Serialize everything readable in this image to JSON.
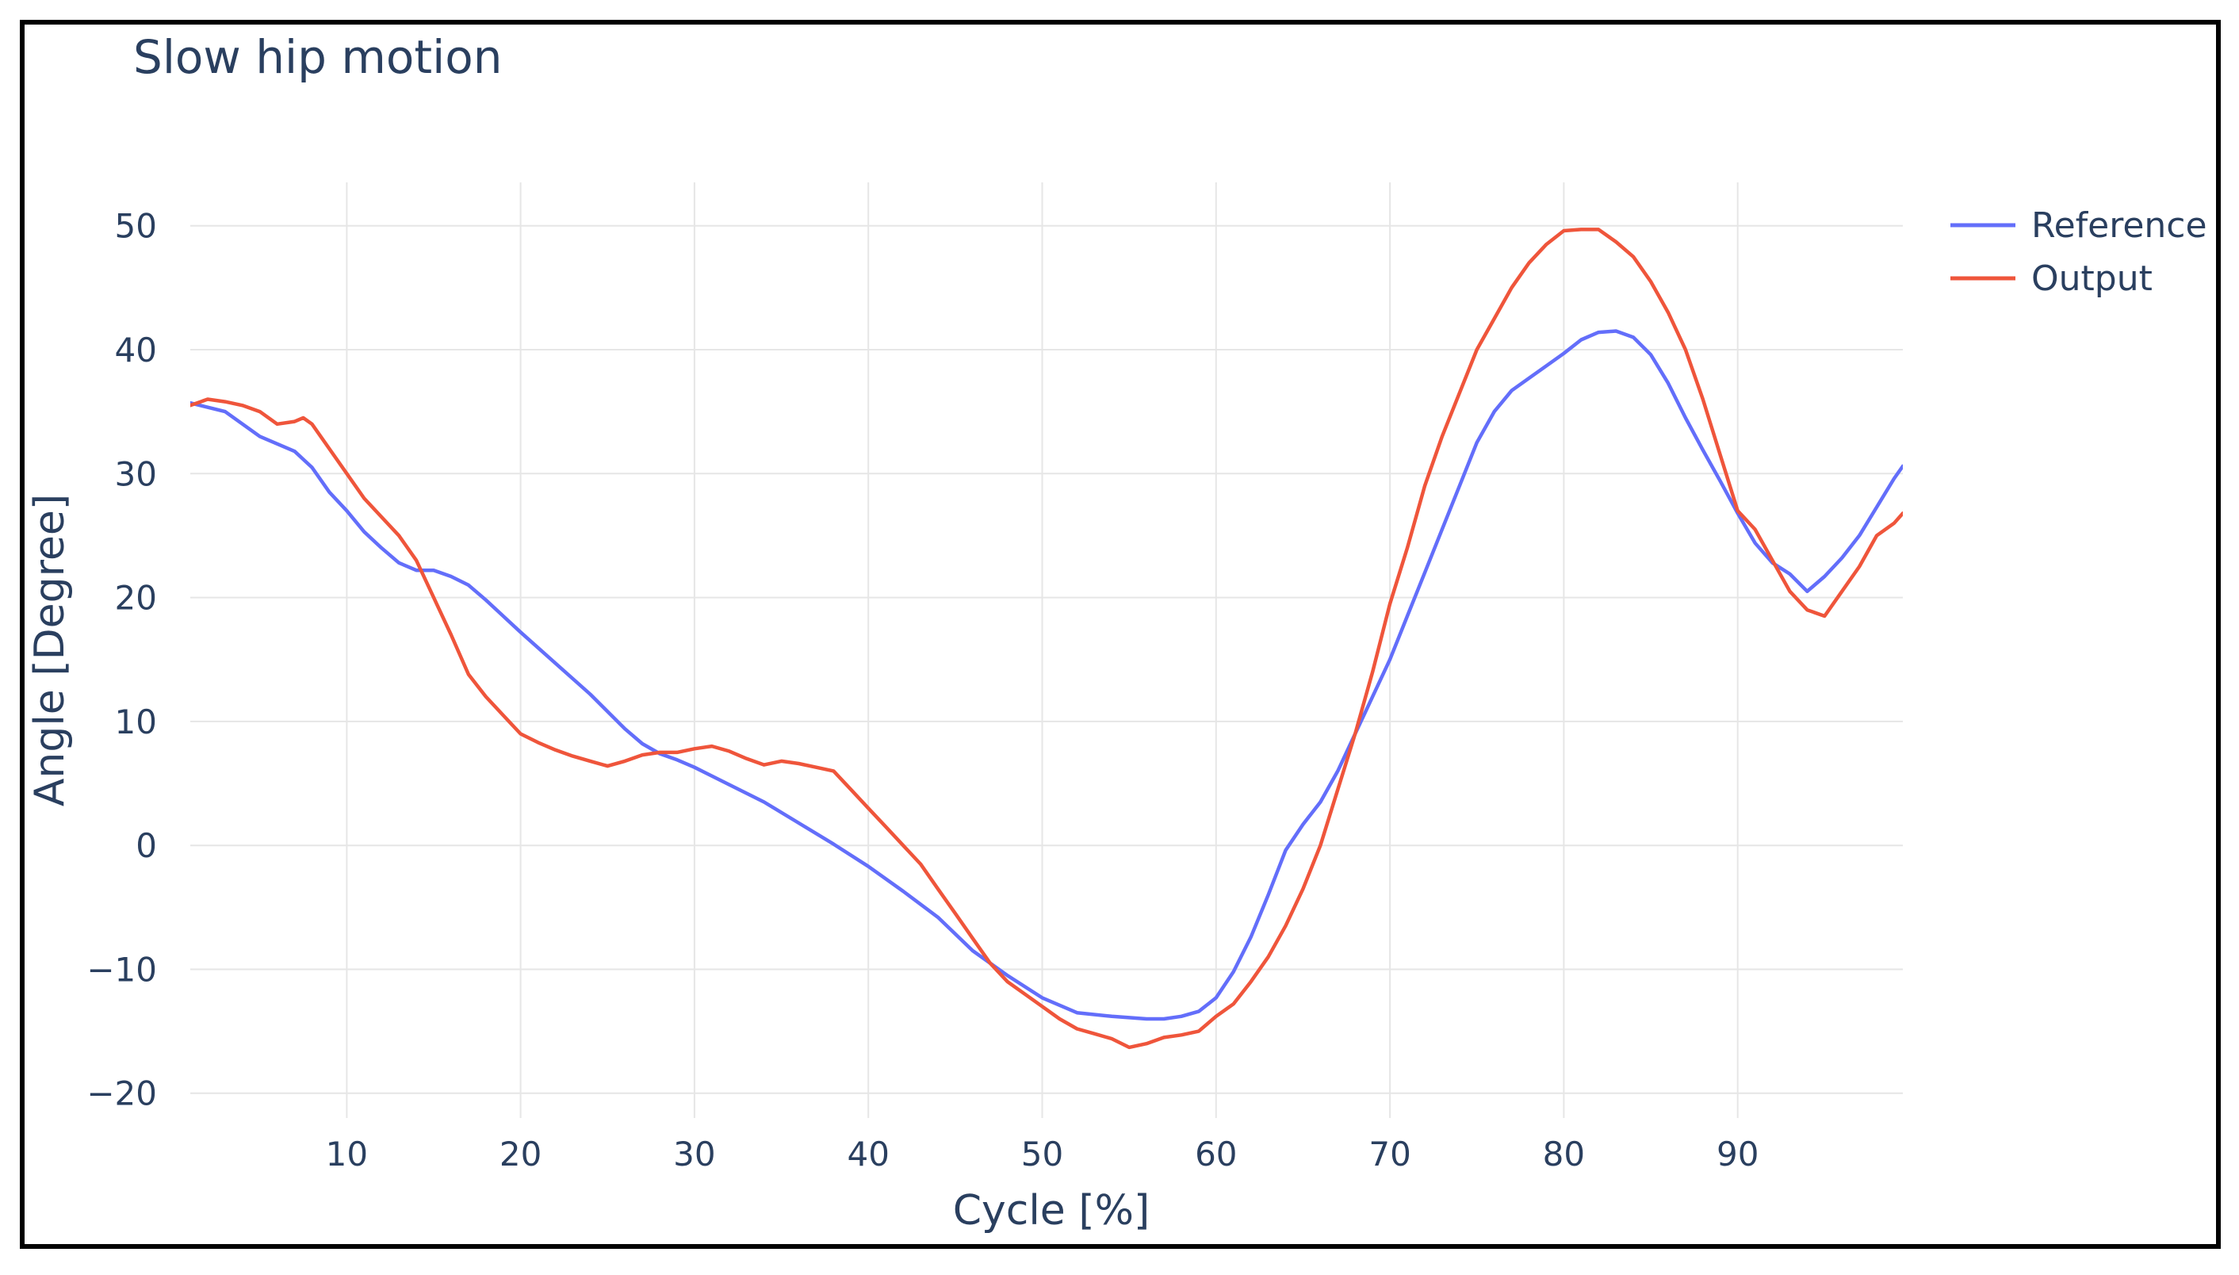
{
  "chart_data": {
    "type": "line",
    "title": "Slow hip motion",
    "xlabel": "Cycle [%]",
    "ylabel": "Angle [Degree]",
    "xlim": [
      1,
      99.5
    ],
    "ylim": [
      -22,
      53.5
    ],
    "xticks": [
      10,
      20,
      30,
      40,
      50,
      60,
      70,
      80,
      90
    ],
    "xtick_labels": [
      "10",
      "20",
      "30",
      "40",
      "50",
      "60",
      "70",
      "80",
      "90"
    ],
    "yticks": [
      -20,
      -10,
      0,
      10,
      20,
      30,
      40,
      50
    ],
    "ytick_labels": [
      "−20",
      "−10",
      "0",
      "10",
      "20",
      "30",
      "40",
      "50"
    ],
    "legend_position": "top-right",
    "series": [
      {
        "name": "Reference",
        "color": "#636efa",
        "x": [
          1,
          3,
          5,
          7,
          8,
          9,
          10,
          11,
          12,
          13,
          14,
          15,
          16,
          17,
          18,
          19,
          20,
          22,
          24,
          26,
          27,
          28,
          29,
          30,
          32,
          34,
          36,
          38,
          40,
          42,
          44,
          46,
          48,
          50,
          52,
          54,
          56,
          57,
          58,
          59,
          60,
          61,
          62,
          63,
          64,
          65,
          66,
          67,
          68,
          69,
          70,
          71,
          72,
          73,
          74,
          75,
          76,
          77,
          78,
          79,
          80,
          81,
          82,
          83,
          84,
          85,
          86,
          87,
          88,
          89,
          90,
          91,
          92,
          93,
          94,
          95,
          96,
          97,
          98,
          99,
          99.5
        ],
        "y": [
          35.7,
          35.0,
          33.0,
          31.8,
          30.5,
          28.5,
          27.0,
          25.3,
          24.0,
          22.8,
          22.2,
          22.2,
          21.7,
          21.0,
          19.8,
          18.5,
          17.2,
          14.7,
          12.2,
          9.4,
          8.2,
          7.4,
          6.9,
          6.3,
          4.9,
          3.5,
          1.8,
          0.1,
          -1.7,
          -3.7,
          -5.8,
          -8.5,
          -10.5,
          -12.3,
          -13.5,
          -13.8,
          -14.0,
          -14.0,
          -13.8,
          -13.4,
          -12.3,
          -10.2,
          -7.4,
          -4.0,
          -0.4,
          1.7,
          3.5,
          6.0,
          9.0,
          12.0,
          15.0,
          18.5,
          22.0,
          25.5,
          29.0,
          32.5,
          35.0,
          36.7,
          37.7,
          38.7,
          39.7,
          40.8,
          41.4,
          41.5,
          41.0,
          39.6,
          37.3,
          34.5,
          31.9,
          29.4,
          26.8,
          24.4,
          22.8,
          21.9,
          20.5,
          21.7,
          23.2,
          25.0,
          27.3,
          29.6,
          30.6
        ]
      },
      {
        "name": "Output",
        "color": "#ef553b",
        "x": [
          1,
          2,
          3,
          4,
          5,
          6,
          7,
          7.5,
          8,
          9,
          10,
          11,
          12,
          13,
          14,
          15,
          16,
          17,
          18,
          19,
          20,
          21,
          22,
          23,
          24,
          25,
          26,
          27,
          28,
          29,
          30,
          31,
          32,
          33,
          34,
          35,
          36,
          37,
          38,
          39,
          40,
          41,
          42,
          43,
          44,
          45,
          46,
          47,
          48,
          49,
          50,
          51,
          52,
          53,
          54,
          55,
          56,
          57,
          58,
          59,
          60,
          61,
          62,
          63,
          64,
          65,
          66,
          67,
          68,
          69,
          70,
          71,
          72,
          73,
          74,
          75,
          76,
          77,
          78,
          79,
          80,
          81,
          82,
          83,
          84,
          85,
          86,
          87,
          88,
          89,
          90,
          91,
          92,
          93,
          94,
          95,
          96,
          97,
          98,
          99,
          99.5
        ],
        "y": [
          35.5,
          36.0,
          35.8,
          35.5,
          35.0,
          34.0,
          34.2,
          34.5,
          34.0,
          32.0,
          30.0,
          28.0,
          26.5,
          25.0,
          23.0,
          20.0,
          17.0,
          13.8,
          12.0,
          10.5,
          9.0,
          8.3,
          7.7,
          7.2,
          6.8,
          6.4,
          6.8,
          7.3,
          7.5,
          7.5,
          7.8,
          8.0,
          7.6,
          7.0,
          6.5,
          6.8,
          6.6,
          6.3,
          6.0,
          4.5,
          3.0,
          1.5,
          0.0,
          -1.5,
          -3.5,
          -5.5,
          -7.5,
          -9.5,
          -11.0,
          -12.0,
          -13.0,
          -14.0,
          -14.8,
          -15.2,
          -15.6,
          -16.3,
          -16.0,
          -15.5,
          -15.3,
          -15.0,
          -13.8,
          -12.8,
          -11.0,
          -9.0,
          -6.5,
          -3.5,
          0.0,
          4.5,
          9.0,
          14.0,
          19.5,
          24.0,
          29.0,
          33.0,
          36.5,
          40.0,
          42.5,
          45.0,
          47.0,
          48.5,
          49.6,
          49.7,
          49.7,
          48.7,
          47.5,
          45.5,
          43.0,
          40.0,
          36.0,
          31.5,
          27.0,
          25.5,
          23.0,
          20.5,
          19.0,
          18.5,
          20.5,
          22.5,
          25.0,
          26.0,
          26.8
        ]
      }
    ]
  }
}
